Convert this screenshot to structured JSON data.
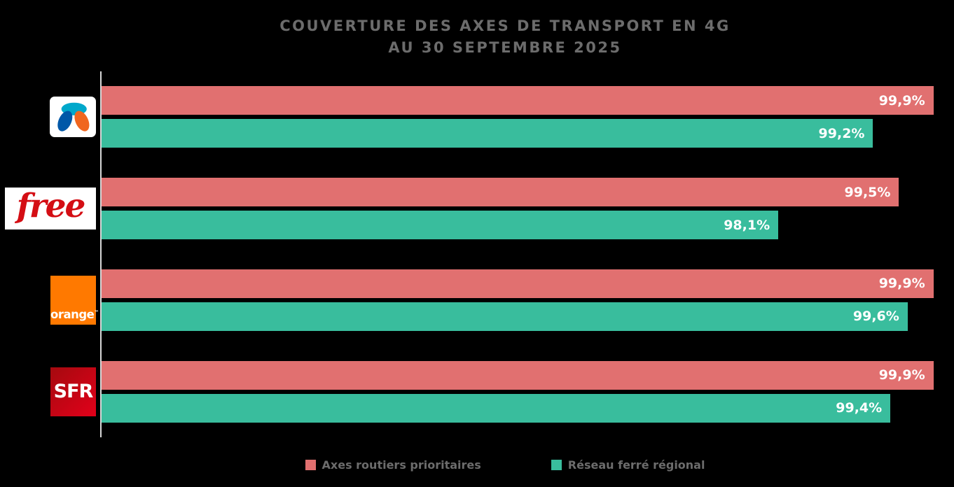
{
  "title": {
    "line1": "COUVERTURE DES AXES DE TRANSPORT EN 4G",
    "line2": "AU 30 SEPTEMBRE 2025"
  },
  "colors": {
    "background": "#000000",
    "axis_line": "#D8D8D8",
    "title_text": "#6C6C6C",
    "value_label_text": "#FFFFFF",
    "series_axes_routiers": "#E17070",
    "series_reseau_ferre": "#39BD9D",
    "bouygues_cyan": "#00A8CB",
    "bouygues_blue": "#0058A8",
    "bouygues_orange": "#F0661F",
    "free_red": "#D40E14",
    "orange_brand": "#FF7900",
    "sfr_red_dark": "#A50A0F",
    "sfr_red_bright": "#E2001A"
  },
  "operators": [
    {
      "name": "Bouygues Telecom"
    },
    {
      "name": "Free",
      "logo_text": "free"
    },
    {
      "name": "Orange",
      "logo_text": "orange",
      "logo_tm": "™"
    },
    {
      "name": "SFR",
      "logo_text": "SFR"
    }
  ],
  "chart_data": {
    "type": "bar",
    "orientation": "horizontal",
    "title": "COUVERTURE DES AXES DE TRANSPORT EN 4G AU 30 SEPTEMBRE 2025",
    "categories": [
      "Bouygues Telecom",
      "Free",
      "Orange",
      "SFR"
    ],
    "series": [
      {
        "name": "Axes routiers prioritaires",
        "color": "#E17070",
        "values": [
          99.9,
          99.5,
          99.9,
          99.9
        ],
        "labels": [
          "99,9%",
          "99,5%",
          "99,9%",
          "99,9%"
        ]
      },
      {
        "name": "Réseau ferré régional",
        "color": "#39BD9D",
        "values": [
          99.2,
          98.1,
          99.6,
          99.4
        ],
        "labels": [
          "99,2%",
          "98,1%",
          "99,6%",
          "99,4%"
        ]
      }
    ],
    "axis": {
      "min": 90.25,
      "max": 100,
      "unit": "%"
    },
    "legend_position": "bottom",
    "grid": false
  }
}
